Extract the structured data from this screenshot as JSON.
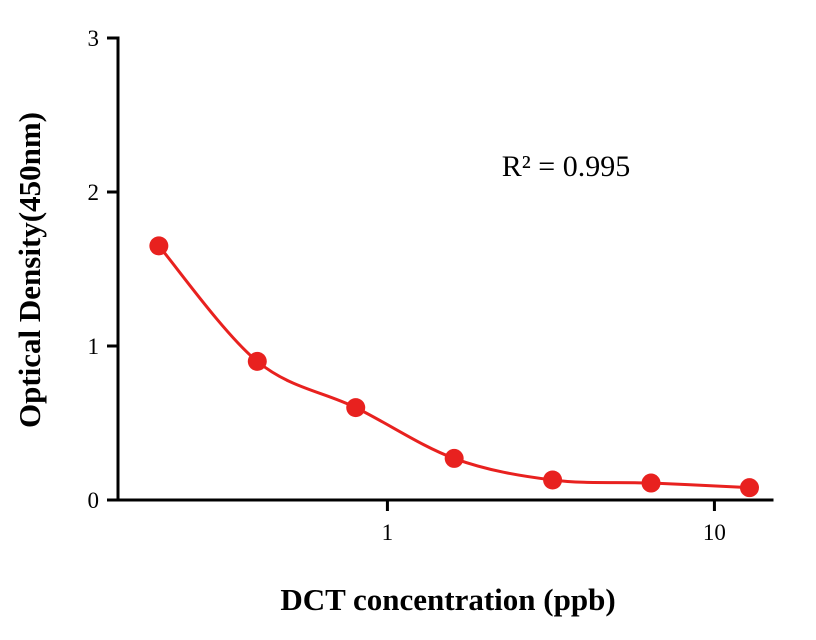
{
  "page": {
    "background": "#ffffff"
  },
  "chart_data": {
    "type": "scatter",
    "x": [
      0.2,
      0.4,
      0.8,
      1.6,
      3.2,
      6.4,
      12.8
    ],
    "y": [
      1.65,
      0.9,
      0.6,
      0.27,
      0.13,
      0.11,
      0.08
    ],
    "title": "",
    "xlabel": "DCT concentration (ppb)",
    "ylabel": "Optical Density(450nm)",
    "annotation": "R² = 0.995",
    "x_scale": "log",
    "y_scale": "linear",
    "xlim": [
      0.15,
      15
    ],
    "ylim": [
      0,
      3
    ],
    "x_ticks": [
      1,
      10
    ],
    "y_ticks": [
      0,
      1,
      2,
      3
    ],
    "fit_curve": "smooth-decreasing-4pl",
    "point_color": "#e8211f",
    "line_color": "#e8211f",
    "axis_color": "#000000",
    "grid": false,
    "legend": null
  }
}
